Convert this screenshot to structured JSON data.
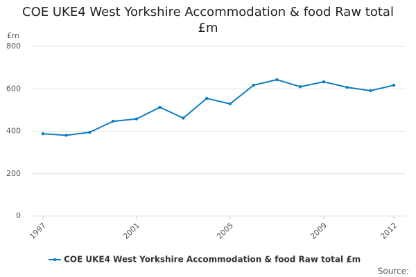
{
  "chart_data": {
    "type": "line",
    "title": "COE UKE4 West Yorkshire Accommodation & food Raw total £m",
    "y_label": "£m",
    "source": "Source:",
    "x": [
      1997,
      1998,
      1999,
      2000,
      2001,
      2002,
      2003,
      2004,
      2005,
      2006,
      2007,
      2008,
      2009,
      2010,
      2011,
      2012
    ],
    "series": [
      {
        "name": "COE UKE4 West Yorkshire Accommodation & food Raw total £m",
        "color": "#0e7cbf",
        "values": [
          388,
          381,
          395,
          447,
          458,
          513,
          462,
          555,
          529,
          617,
          643,
          610,
          633,
          607,
          591,
          617
        ]
      }
    ],
    "xlim": [
      1996.5,
      2012.5
    ],
    "xticks": [
      1997,
      2001,
      2005,
      2009,
      2012
    ],
    "ylim": [
      0,
      800
    ],
    "yticks": [
      0,
      200,
      400,
      600,
      800
    ],
    "grid": true
  }
}
